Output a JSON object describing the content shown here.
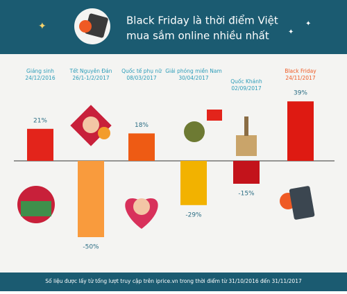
{
  "chart_data": {
    "type": "bar",
    "title": [
      "Black Friday là thời điểm Việt",
      "mua sắm online nhiều nhất"
    ],
    "categories": [
      "Giáng sinh",
      "Tết Nguyên Đán",
      "Quốc tế phụ nữ",
      "Giải phóng miền Nam",
      "Quốc Khánh",
      "Black Friday"
    ],
    "dates": [
      "24/12/2016",
      "26/1-1/2/2017",
      "08/03/2017",
      "30/04/2017",
      "02/09/2017",
      "24/11/2017"
    ],
    "values": [
      21,
      -50,
      18,
      -29,
      -15,
      39
    ],
    "value_labels": [
      "21%",
      "-50%",
      "18%",
      "-29%",
      "-15%",
      "39%"
    ],
    "colors": [
      "#e3241b",
      "#f99b3d",
      "#ee5b14",
      "#f2b200",
      "#c3131b",
      "#de1a12"
    ],
    "label_colors": [
      "#2b9cb8",
      "#2b9cb8",
      "#2b9cb8",
      "#2b9cb8",
      "#2b9cb8",
      "#ef5a24"
    ],
    "source": "Số liệu được lấy từ tổng lượt truy cập trên iprice.vn trong thời điểm từ 31/10/2016 đến 31/11/2017"
  }
}
